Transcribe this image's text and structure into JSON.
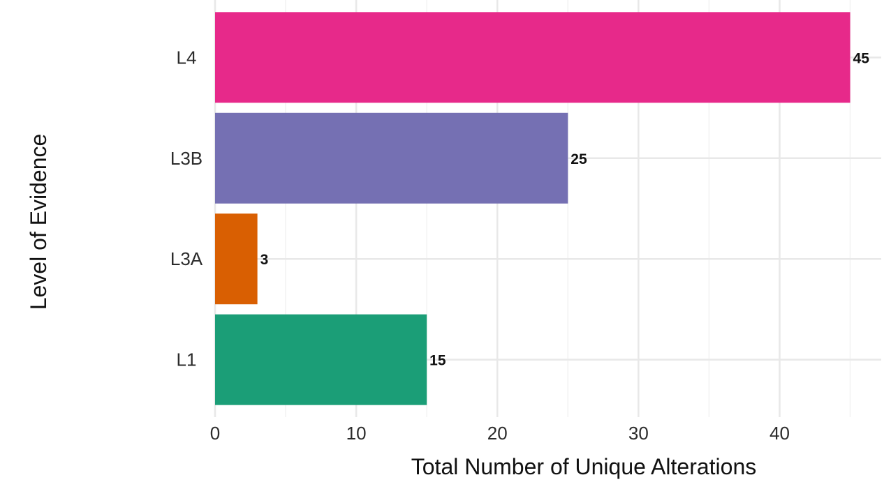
{
  "chart_data": {
    "type": "bar",
    "orientation": "horizontal",
    "categories": [
      "L1",
      "L3A",
      "L3B",
      "L4"
    ],
    "values": [
      15,
      3,
      25,
      45
    ],
    "data_labels": [
      "15",
      "3",
      "25",
      "45"
    ],
    "colors": [
      "#1b9e77",
      "#d95f02",
      "#7570b3",
      "#e7298a"
    ],
    "xlabel": "Total Number of Unique Alterations",
    "ylabel": "Level of Evidence",
    "xlim": [
      0,
      47.2
    ],
    "xticks": [
      0,
      10,
      20,
      30,
      40
    ],
    "xtick_labels": [
      "0",
      "10",
      "20",
      "30",
      "40"
    ],
    "grid": true,
    "legend": "none"
  }
}
